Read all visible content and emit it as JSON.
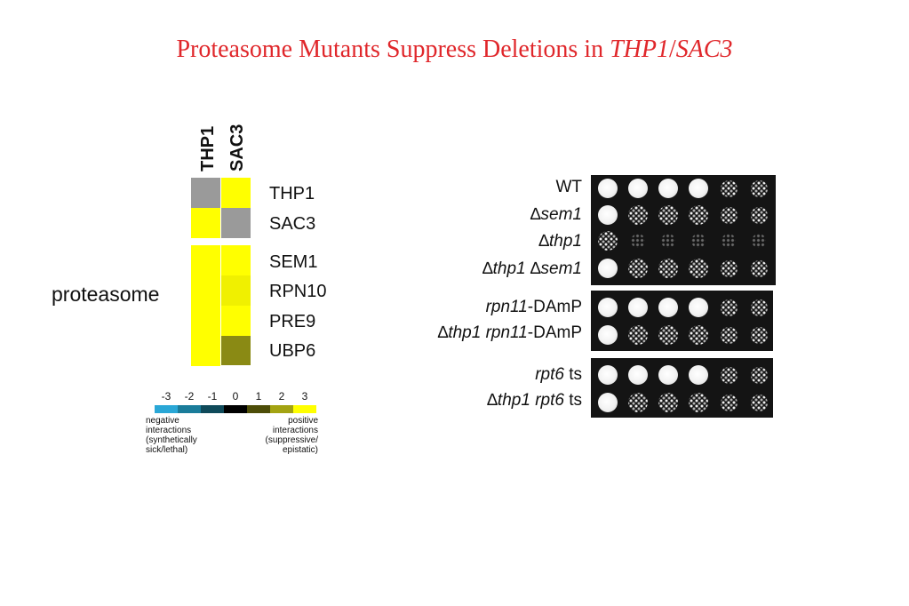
{
  "title": {
    "main": "Proteasome Mutants Suppress Deletions in ",
    "gene_a": "THP1",
    "sep": "/",
    "gene_b": "SAC3"
  },
  "heatmap": {
    "columns": [
      "THP1",
      "SAC3"
    ],
    "rows": [
      "THP1",
      "SAC3",
      "SEM1",
      "RPN10",
      "PRE9",
      "UBP6"
    ],
    "group_label": "proteasome",
    "colors": {
      "grey": "#9a9a9a",
      "yellow": "#ffff00",
      "yellow_mid": "#f0f000",
      "olive": "#8a8a14"
    },
    "cells": [
      [
        "grey",
        "yellow"
      ],
      [
        "yellow",
        "grey"
      ],
      [
        "yellow",
        "yellow"
      ],
      [
        "yellow",
        "yellow_mid"
      ],
      [
        "yellow",
        "yellow"
      ],
      [
        "yellow",
        "olive"
      ]
    ]
  },
  "scale": {
    "ticks": [
      "-3",
      "-2",
      "-1",
      "0",
      "1",
      "2",
      "3"
    ],
    "colors": [
      "#2aa7d6",
      "#1a7c9a",
      "#0f4a5a",
      "#000000",
      "#4d4d08",
      "#a3a312",
      "#ffff00"
    ],
    "negative_note": [
      "negative",
      "interactions",
      "(synthetically",
      "sick/lethal)"
    ],
    "positive_note": [
      "positive",
      "interactions",
      "(suppressive/",
      "epistatic)"
    ]
  },
  "spot_assay": {
    "labels": {
      "wt": "WT",
      "delta": "∆",
      "sem1": "sem1",
      "thp1": "thp1",
      "rpn11": "rpn11",
      "damp": "-DAmP",
      "rpt6": "rpt6",
      "ts": " ts"
    }
  }
}
